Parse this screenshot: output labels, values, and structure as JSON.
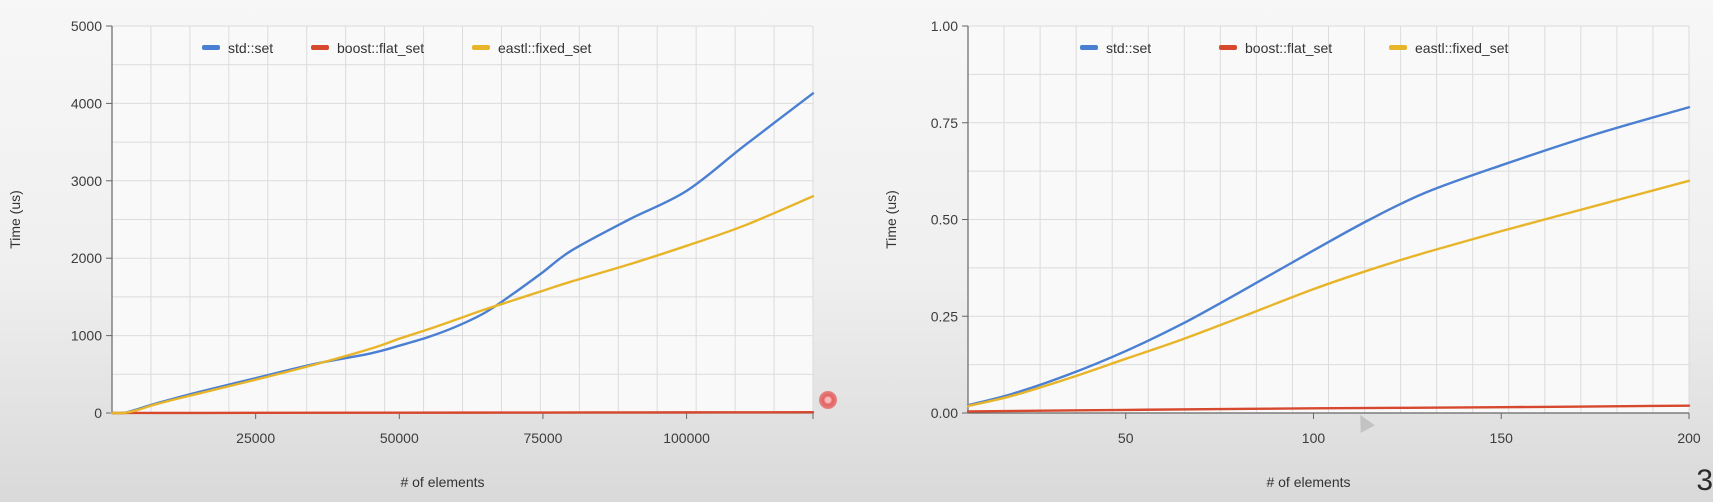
{
  "slide_number": "3",
  "colors": {
    "std_set": "#4a7fd1",
    "boost_flat_set": "#d6492e",
    "eastl_fixed_set": "#e8b52a",
    "grid": "#dcdcdc",
    "axis": "#666666"
  },
  "chart_data": [
    {
      "type": "line",
      "title": "",
      "xlabel": "# of elements",
      "ylabel": "Time (us)",
      "xlim": [
        0,
        122000
      ],
      "ylim": [
        0,
        5000
      ],
      "x_ticks": [
        25000,
        50000,
        75000,
        100000
      ],
      "x_tick_labels": [
        "25000",
        "50000",
        "75000",
        "100000"
      ],
      "y_ticks": [
        0,
        1000,
        2000,
        3000,
        4000,
        5000
      ],
      "y_tick_labels": [
        "0",
        "1000",
        "2000",
        "3000",
        "4000",
        "5000"
      ],
      "grid": true,
      "legend_position": "top-center",
      "series": [
        {
          "name": "std::set",
          "color_key": "std_set",
          "x": [
            0,
            2000,
            4000,
            8000,
            15000,
            25000,
            35000,
            45000,
            50000,
            55000,
            60000,
            65000,
            70000,
            75000,
            80000,
            90000,
            100000,
            110000,
            122000
          ],
          "y": [
            0,
            0,
            40,
            130,
            270,
            450,
            630,
            770,
            870,
            980,
            1120,
            1300,
            1550,
            1820,
            2100,
            2500,
            2870,
            3450,
            4130
          ]
        },
        {
          "name": "boost::flat_set",
          "color_key": "boost_flat_set",
          "x": [
            0,
            25000,
            50000,
            75000,
            100000,
            122000
          ],
          "y": [
            0,
            2,
            4,
            6,
            8,
            10
          ]
        },
        {
          "name": "eastl::fixed_set",
          "color_key": "eastl_fixed_set",
          "x": [
            0,
            2000,
            4000,
            8000,
            15000,
            25000,
            35000,
            45000,
            50000,
            55000,
            60000,
            65000,
            70000,
            75000,
            80000,
            90000,
            100000,
            110000,
            122000
          ],
          "y": [
            0,
            0,
            30,
            120,
            250,
            430,
            620,
            830,
            960,
            1080,
            1210,
            1340,
            1460,
            1580,
            1700,
            1920,
            2160,
            2420,
            2800
          ]
        }
      ]
    },
    {
      "type": "line",
      "title": "",
      "xlabel": "# of elements",
      "ylabel": "Time (us)",
      "xlim": [
        8,
        200
      ],
      "ylim": [
        0,
        1
      ],
      "x_ticks": [
        50,
        100,
        150,
        200
      ],
      "x_tick_labels": [
        "50",
        "100",
        "150",
        "200"
      ],
      "y_ticks": [
        0,
        0.25,
        0.5,
        0.75,
        1.0
      ],
      "y_tick_labels": [
        "0.00",
        "0.25",
        "0.50",
        "0.75",
        "1.00"
      ],
      "grid": true,
      "legend_position": "top-center",
      "series": [
        {
          "name": "std::set",
          "color_key": "std_set",
          "x": [
            8,
            20,
            35,
            50,
            65,
            80,
            100,
            115,
            130,
            150,
            175,
            200
          ],
          "y": [
            0.02,
            0.05,
            0.1,
            0.16,
            0.23,
            0.31,
            0.42,
            0.5,
            0.57,
            0.64,
            0.72,
            0.79
          ]
        },
        {
          "name": "boost::flat_set",
          "color_key": "boost_flat_set",
          "x": [
            8,
            50,
            100,
            150,
            200
          ],
          "y": [
            0.004,
            0.008,
            0.012,
            0.015,
            0.019
          ]
        },
        {
          "name": "eastl::fixed_set",
          "color_key": "eastl_fixed_set",
          "x": [
            8,
            20,
            35,
            50,
            65,
            80,
            100,
            115,
            130,
            150,
            175,
            200
          ],
          "y": [
            0.018,
            0.045,
            0.09,
            0.14,
            0.19,
            0.245,
            0.32,
            0.37,
            0.415,
            0.47,
            0.535,
            0.6
          ]
        }
      ]
    }
  ]
}
